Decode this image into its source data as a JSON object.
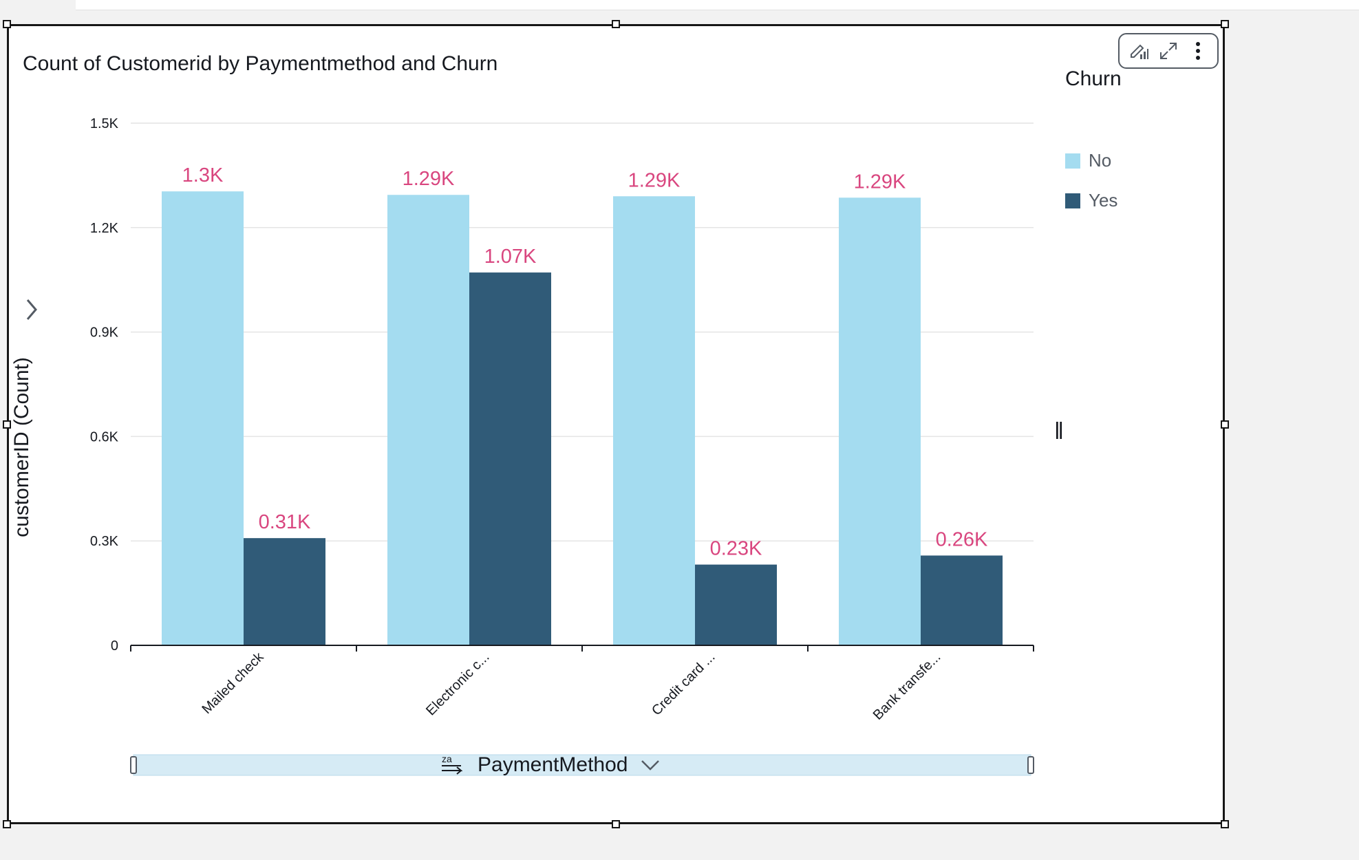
{
  "visual": {
    "title": "Count of Customerid by Paymentmethod and Churn",
    "toolbar": [
      "format-visual-icon",
      "expand-icon",
      "more-options-icon"
    ]
  },
  "legend": {
    "title": "Churn",
    "items": [
      {
        "label": "No",
        "color": "#a4dcf0"
      },
      {
        "label": "Yes",
        "color": "#305b78"
      }
    ]
  },
  "y_axis": {
    "label": "customerID (Count)"
  },
  "x_axis": {
    "label": "PaymentMethod",
    "sort_icon_text": "za"
  },
  "colors": {
    "label": "#d9467f",
    "axis": "#16191f",
    "grid": "#e4e4e4",
    "scrollbar": "#d6ebf5"
  },
  "chart_data": {
    "type": "bar",
    "title": "Count of Customerid by Paymentmethod and Churn",
    "xlabel": "PaymentMethod",
    "ylabel": "customerID (Count)",
    "categories": [
      "Mailed check",
      "Electronic c...",
      "Credit card ...",
      "Bank transfe..."
    ],
    "series": [
      {
        "name": "No",
        "values": [
          1304,
          1294,
          1290,
          1286
        ],
        "labels": [
          "1.3K",
          "1.29K",
          "1.29K",
          "1.29K"
        ],
        "color": "#a4dcf0"
      },
      {
        "name": "Yes",
        "values": [
          308,
          1071,
          232,
          258
        ],
        "labels": [
          "0.31K",
          "1.07K",
          "0.23K",
          "0.26K"
        ],
        "color": "#305b78"
      }
    ],
    "yticks": [
      0,
      300,
      600,
      900,
      1200,
      1500
    ],
    "ytick_labels": [
      "0",
      "0.3K",
      "0.6K",
      "0.9K",
      "1.2K",
      "1.5K"
    ],
    "ylim": [
      0,
      1500
    ],
    "grid": true,
    "legend_position": "right"
  }
}
